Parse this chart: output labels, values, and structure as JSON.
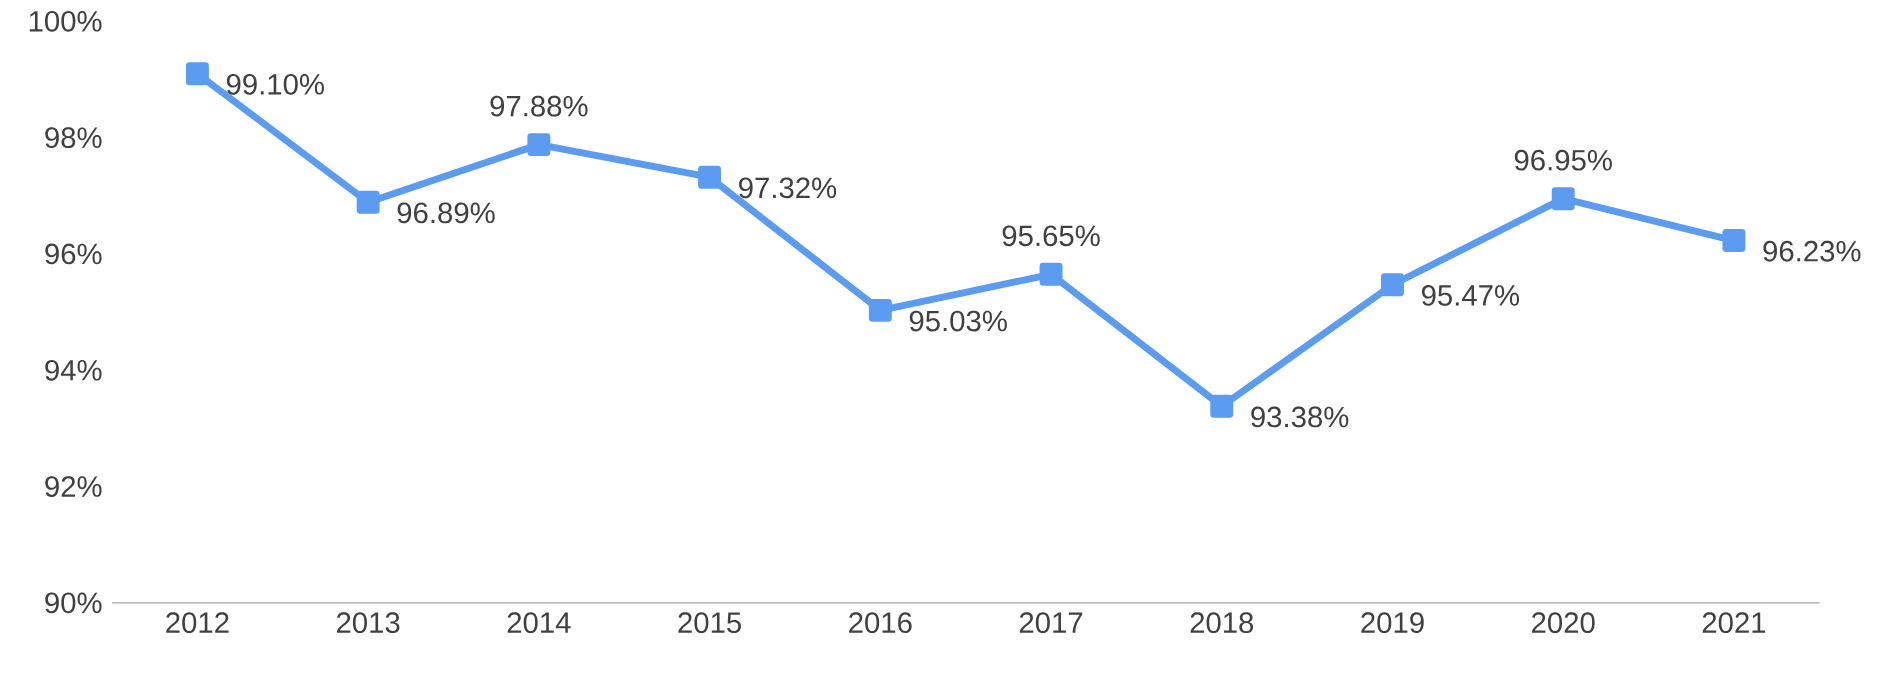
{
  "chart_data": {
    "type": "line",
    "categories": [
      "2012",
      "2013",
      "2014",
      "2015",
      "2016",
      "2017",
      "2018",
      "2019",
      "2020",
      "2021"
    ],
    "series": [
      {
        "color": "#5b9bf0",
        "values": [
          99.1,
          96.89,
          97.88,
          97.32,
          95.03,
          95.65,
          93.38,
          95.47,
          96.95,
          96.23
        ],
        "value_labels": [
          "99.10%",
          "96.89%",
          "97.88%",
          "97.32%",
          "95.03%",
          "95.65%",
          "93.38%",
          "95.47%",
          "96.95%",
          "96.23%"
        ]
      }
    ],
    "ylim": [
      90,
      100
    ],
    "yticks": [
      {
        "value": 90,
        "label": "90%"
      },
      {
        "value": 92,
        "label": "92%"
      },
      {
        "value": 94,
        "label": "94%"
      },
      {
        "value": 96,
        "label": "96%"
      },
      {
        "value": 98,
        "label": "98%"
      },
      {
        "value": 100,
        "label": "100%"
      }
    ],
    "marker": "square",
    "line_style": "solid",
    "grid": false
  }
}
